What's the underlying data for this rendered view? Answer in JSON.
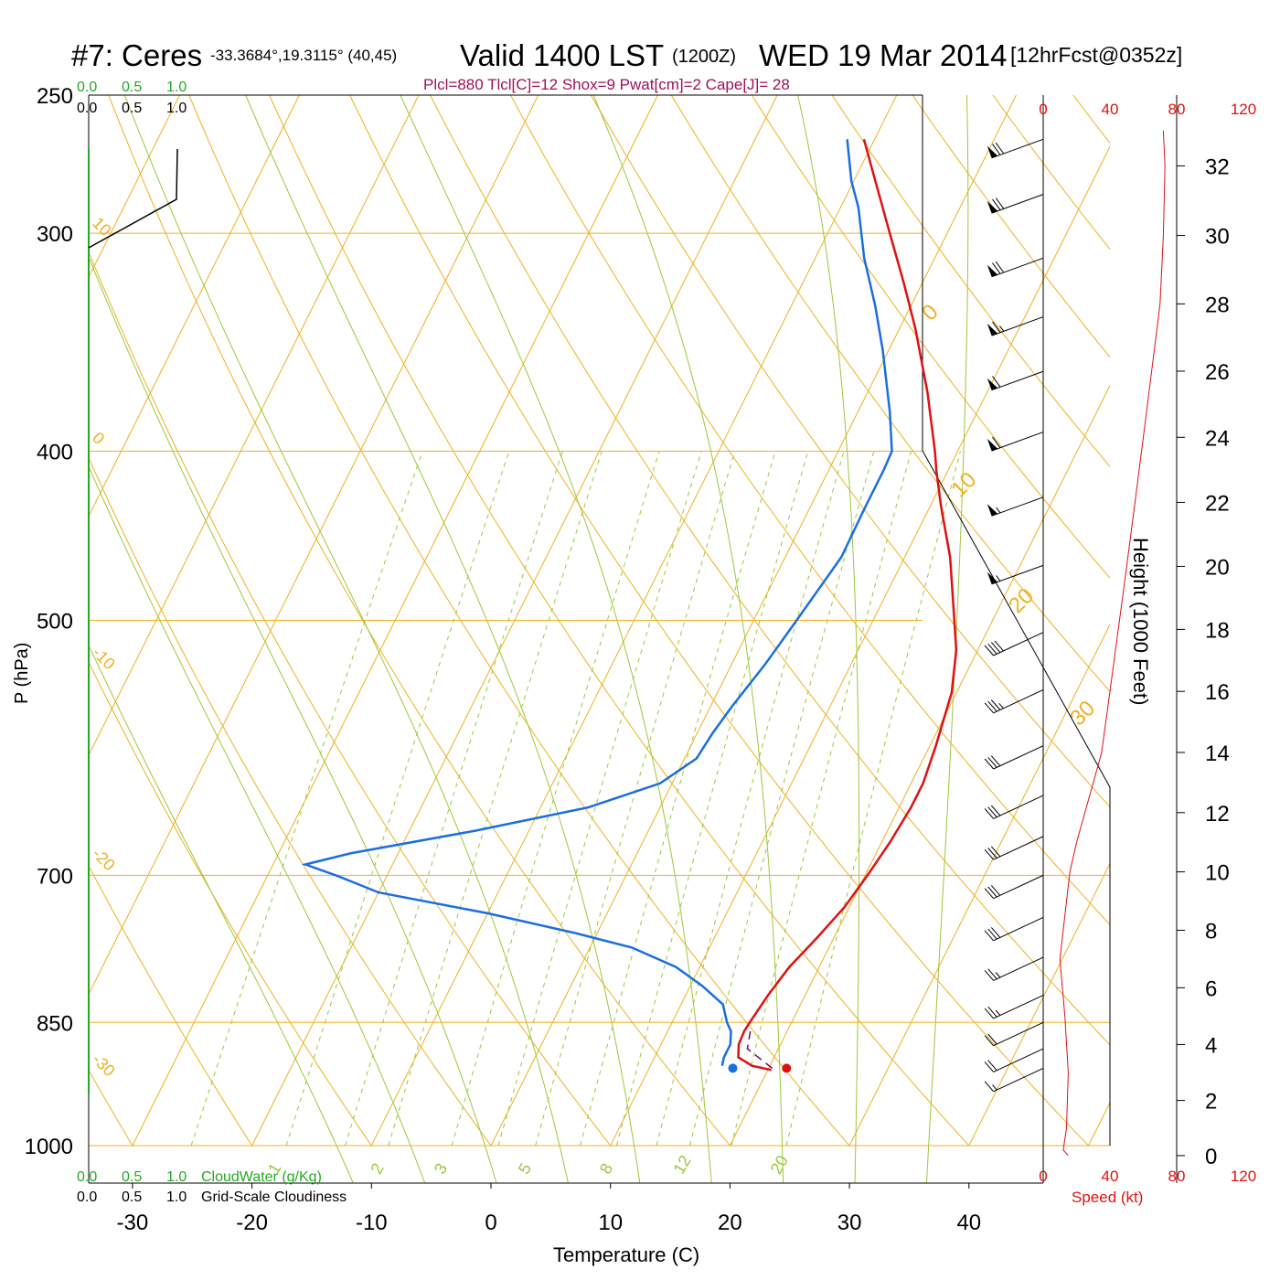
{
  "header": {
    "station": "#7: Ceres",
    "coords": "-33.3684°,19.3115° (40,45)",
    "valid": "Valid 1400 LST",
    "utc": "(1200Z)",
    "date": "WED 19 Mar 2014",
    "forecast": "[12hrFcst@0352z]",
    "indices": "Plcl=880 Tlcl[C]=12 Shox=9 Pwat[cm]=2 Cape[J]= 28"
  },
  "colors": {
    "isobar": "#f0b020",
    "isotherm": "#f0b020",
    "dry_adiabat": "#9bc83c",
    "moist_adiabat": "#9bc83c",
    "mixing_ratio": "#9bc83c",
    "temperature": "#e01010",
    "dewpoint": "#1a6ee0",
    "parcel": "#701060",
    "cloudwater_axis": "#22aa22",
    "cloudiness": "#000000",
    "wind_speed": "#e01010",
    "indices_text": "#a0105a",
    "isotherm_label": "#f0b020",
    "mixing_label": "#9bc83c"
  },
  "chart_data": {
    "type": "skew-t",
    "xlabel": "Temperature (C)",
    "ylabel": "P (hPa)",
    "x_ticks": [
      -30,
      -20,
      -10,
      0,
      10,
      20,
      30,
      40
    ],
    "p_ticks": [
      250,
      300,
      400,
      500,
      700,
      850,
      1000
    ],
    "isotherm_labels": [
      "10",
      "0",
      "-10",
      "-20",
      "-30",
      "0",
      "10",
      "20",
      "30"
    ],
    "mixing_ratio_labels": [
      "1",
      "2",
      "3",
      "5",
      "8",
      "12",
      "20"
    ],
    "temperature_profile": {
      "name": "Temperature",
      "points": [
        [
          20.3,
          905
        ],
        [
          18.5,
          900
        ],
        [
          17.0,
          890
        ],
        [
          16.5,
          875
        ],
        [
          16.4,
          860
        ],
        [
          16.5,
          850
        ],
        [
          16.9,
          820
        ],
        [
          17.5,
          790
        ],
        [
          18.6,
          760
        ],
        [
          19.6,
          730
        ],
        [
          20.2,
          700
        ],
        [
          20.7,
          670
        ],
        [
          21.0,
          640
        ],
        [
          21.0,
          620
        ],
        [
          20.5,
          590
        ],
        [
          19.6,
          550
        ],
        [
          18.2,
          520
        ],
        [
          16.8,
          500
        ],
        [
          13.8,
          460
        ],
        [
          10.9,
          430
        ],
        [
          9.0,
          410
        ],
        [
          8.1,
          400
        ],
        [
          5.0,
          370
        ],
        [
          1.3,
          340
        ],
        [
          -1.6,
          320
        ],
        [
          -4.8,
          300
        ],
        [
          -8.2,
          280
        ],
        [
          -10.9,
          265
        ]
      ]
    },
    "dewpoint_profile": {
      "name": "Dewpoint",
      "points": [
        [
          16.0,
          900
        ],
        [
          15.8,
          890
        ],
        [
          15.8,
          875
        ],
        [
          15.3,
          860
        ],
        [
          14.6,
          850
        ],
        [
          13.5,
          830
        ],
        [
          11.0,
          810
        ],
        [
          8.0,
          790
        ],
        [
          3.5,
          770
        ],
        [
          -2.0,
          755
        ],
        [
          -10.0,
          736
        ],
        [
          -20.0,
          716
        ],
        [
          -24.0,
          701
        ],
        [
          -27.3,
          690
        ],
        [
          -24.0,
          680
        ],
        [
          -14.5,
          660
        ],
        [
          -6.0,
          640
        ],
        [
          -1.0,
          620
        ],
        [
          1.0,
          600
        ],
        [
          1.3,
          580
        ],
        [
          1.8,
          560
        ],
        [
          2.8,
          530
        ],
        [
          3.6,
          500
        ],
        [
          4.7,
          460
        ],
        [
          4.6,
          430
        ],
        [
          4.6,
          410
        ],
        [
          4.5,
          400
        ],
        [
          2.7,
          380
        ],
        [
          -0.5,
          350
        ],
        [
          -3.0,
          330
        ],
        [
          -5.9,
          310
        ],
        [
          -8.5,
          290
        ],
        [
          -10.2,
          280
        ],
        [
          -12.3,
          265
        ]
      ]
    },
    "parcel_path": {
      "name": "Parcel",
      "points": [
        [
          20.3,
          903
        ],
        [
          17.4,
          880
        ],
        [
          16.8,
          855
        ]
      ]
    },
    "surface_points": [
      {
        "name": "surface-temperature",
        "t": 21.5,
        "p": 903
      },
      {
        "name": "surface-dewpoint",
        "t": 17.0,
        "p": 903
      }
    ],
    "wind_barbs": [
      {
        "p": 265,
        "dir": 250,
        "spd_kt": 70
      },
      {
        "p": 285,
        "dir": 250,
        "spd_kt": 70
      },
      {
        "p": 310,
        "dir": 250,
        "spd_kt": 70
      },
      {
        "p": 335,
        "dir": 250,
        "spd_kt": 65
      },
      {
        "p": 360,
        "dir": 250,
        "spd_kt": 60
      },
      {
        "p": 390,
        "dir": 250,
        "spd_kt": 60
      },
      {
        "p": 425,
        "dir": 250,
        "spd_kt": 55
      },
      {
        "p": 465,
        "dir": 250,
        "spd_kt": 55
      },
      {
        "p": 508,
        "dir": 245,
        "spd_kt": 40
      },
      {
        "p": 548,
        "dir": 245,
        "spd_kt": 35
      },
      {
        "p": 590,
        "dir": 245,
        "spd_kt": 30
      },
      {
        "p": 630,
        "dir": 245,
        "spd_kt": 30
      },
      {
        "p": 665,
        "dir": 245,
        "spd_kt": 30
      },
      {
        "p": 700,
        "dir": 245,
        "spd_kt": 30
      },
      {
        "p": 740,
        "dir": 245,
        "spd_kt": 30
      },
      {
        "p": 780,
        "dir": 245,
        "spd_kt": 25
      },
      {
        "p": 820,
        "dir": 245,
        "spd_kt": 25
      },
      {
        "p": 850,
        "dir": 245,
        "spd_kt": 20
      },
      {
        "p": 880,
        "dir": 245,
        "spd_kt": 20
      },
      {
        "p": 903,
        "dir": 245,
        "spd_kt": 15
      }
    ],
    "height_axis": {
      "label": "Height (1000 Feet)",
      "ticks": [
        0,
        2,
        4,
        6,
        8,
        10,
        12,
        14,
        16,
        18,
        20,
        22,
        24,
        26,
        28,
        30,
        32
      ]
    },
    "speed_axis": {
      "label": "Speed (kt)",
      "ticks_top": [
        "0",
        "40",
        "80",
        "120"
      ],
      "ticks_bottom": [
        "0",
        "40",
        "80",
        "120"
      ]
    },
    "speed_profile": [
      [
        15,
        0
      ],
      [
        12,
        0.2
      ],
      [
        14,
        1
      ],
      [
        15,
        3
      ],
      [
        13,
        5
      ],
      [
        10,
        7
      ],
      [
        14,
        9
      ],
      [
        16,
        10
      ],
      [
        20,
        11
      ],
      [
        25,
        12
      ],
      [
        30,
        13
      ],
      [
        35,
        14
      ],
      [
        40,
        16
      ],
      [
        45,
        18
      ],
      [
        50,
        20
      ],
      [
        55,
        22
      ],
      [
        60,
        24
      ],
      [
        65,
        26
      ],
      [
        70,
        28
      ],
      [
        72,
        30
      ],
      [
        73,
        32
      ],
      [
        72,
        33
      ]
    ],
    "cloudwater": {
      "label": "CloudWater (g/Kg)",
      "ticks": [
        "0.0",
        "0.5",
        "1.0"
      ]
    },
    "cloudiness": {
      "label": "Grid-Scale Cloudiness",
      "ticks": [
        "0.0",
        "0.5",
        "1.0"
      ]
    }
  }
}
